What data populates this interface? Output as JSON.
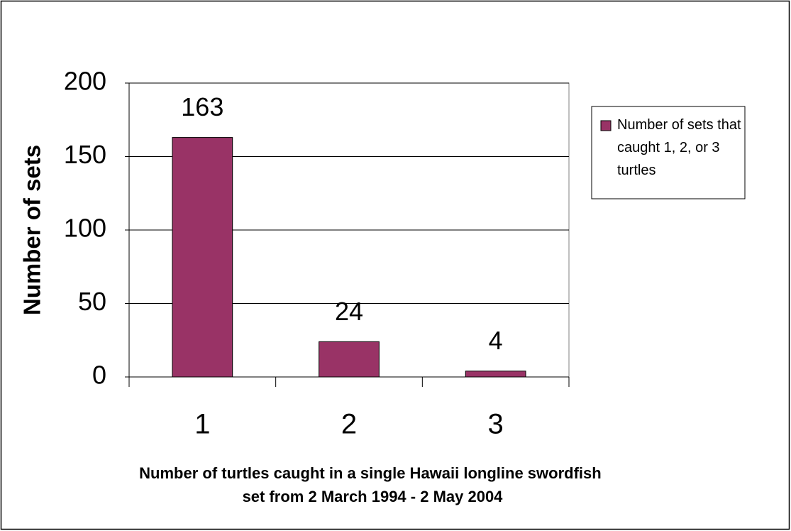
{
  "chart_data": {
    "type": "bar",
    "categories": [
      "1",
      "2",
      "3"
    ],
    "series": [
      {
        "name": "Number of sets that caught 1, 2, or 3 turtles",
        "color": "#993366",
        "values": [
          163,
          24,
          4
        ]
      }
    ],
    "xlabel": "Number of turtles caught in a single Hawaii longline swordfish set from 2 March 1994 - 2 May 2004",
    "ylabel": "Number of sets",
    "ylim": [
      0,
      200
    ],
    "yticks": [
      0,
      50,
      100,
      150,
      200
    ],
    "grid": true,
    "legend": "right"
  }
}
